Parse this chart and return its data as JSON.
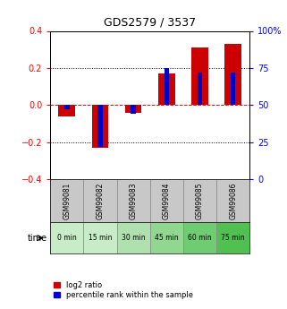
{
  "title": "GDS2579 / 3537",
  "samples": [
    "GSM99081",
    "GSM99082",
    "GSM99083",
    "GSM99084",
    "GSM99085",
    "GSM99086"
  ],
  "time_labels": [
    "0 min",
    "15 min",
    "30 min",
    "45 min",
    "60 min",
    "75 min"
  ],
  "log2_ratio": [
    -0.063,
    -0.23,
    -0.04,
    0.17,
    0.31,
    0.33
  ],
  "percentile_rank": [
    47,
    22,
    44,
    75,
    72,
    72
  ],
  "bar_color_red": "#cc0000",
  "bar_color_blue": "#0000cc",
  "ylim_left": [
    -0.4,
    0.4
  ],
  "ylim_right": [
    0,
    100
  ],
  "yticks_left": [
    -0.4,
    -0.2,
    0.0,
    0.2,
    0.4
  ],
  "yticks_right": [
    0,
    25,
    50,
    75,
    100
  ],
  "bg_color_samples": "#c8c8c8",
  "time_bg_colors": [
    "#c8ecc8",
    "#c8ecc8",
    "#b0e0b0",
    "#90d890",
    "#70cc70",
    "#50c050"
  ],
  "bar_width": 0.5,
  "blue_bar_width": 0.15,
  "legend_labels": [
    "log2 ratio",
    "percentile rank within the sample"
  ]
}
